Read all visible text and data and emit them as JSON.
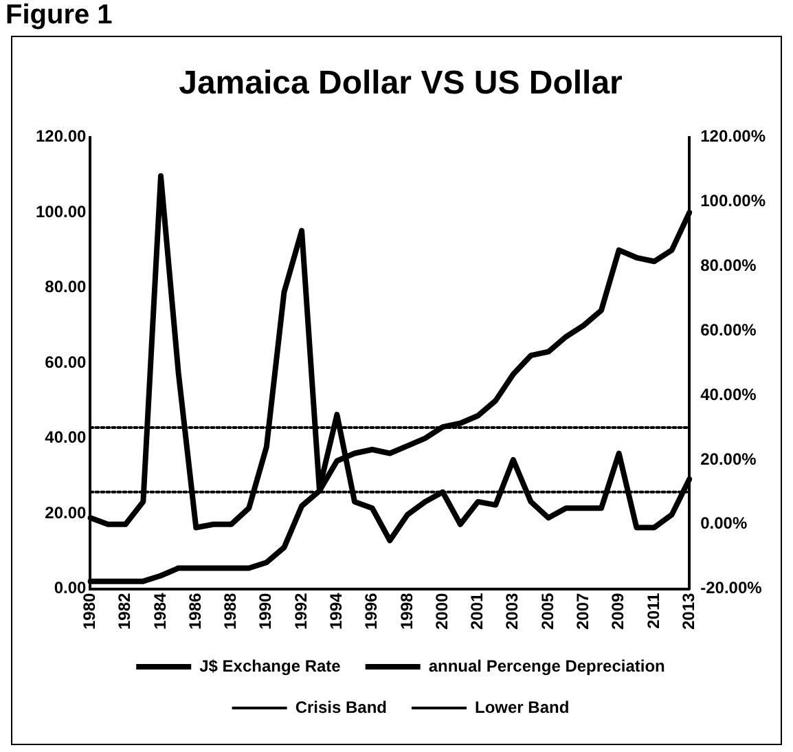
{
  "chart_data": {
    "type": "line",
    "title": "Jamaica Dollar VS US Dollar",
    "annotations": [
      "Figure 1"
    ],
    "categories": [
      "1980",
      null,
      "1982",
      null,
      "1984",
      null,
      "1986",
      null,
      "1988",
      null,
      "1990",
      null,
      "1992",
      null,
      "1994",
      null,
      "1996",
      null,
      "1998",
      null,
      "2000",
      null,
      "2001",
      null,
      "2003",
      null,
      "2005",
      null,
      "2007",
      null,
      "2009",
      null,
      "2011",
      null,
      "2013"
    ],
    "series": [
      {
        "name": "J$ Exchange Rate",
        "color": "#000000",
        "line_style": "solid",
        "values": [
          2,
          2,
          2,
          2,
          3.5,
          5.5,
          5.5,
          5.5,
          5.5,
          5.5,
          7,
          11,
          22,
          26,
          34,
          36,
          37,
          36,
          38,
          40,
          43,
          44,
          46,
          50,
          57,
          62,
          63,
          67,
          70,
          74,
          90,
          88,
          87,
          90,
          100
        ]
      },
      {
        "name": "annual Percenge Depreciation",
        "color": "#000000",
        "axis": "y2",
        "line_style": "solid",
        "values": [
          2,
          0,
          0,
          7,
          108,
          47,
          -1,
          0,
          0,
          5,
          24,
          72,
          91,
          11,
          34,
          7,
          5,
          -5,
          3,
          7,
          10,
          0,
          7,
          6,
          20,
          7,
          2,
          5,
          5,
          5,
          22,
          -1,
          -1,
          3,
          14
        ]
      },
      {
        "name": "Crisis Band",
        "color": "#000000",
        "axis": "y2",
        "line_style": "dotted",
        "values": [
          30,
          30,
          30,
          30,
          30,
          30,
          30,
          30,
          30,
          30,
          30,
          30,
          30,
          30,
          30,
          30,
          30,
          30,
          30,
          30,
          30,
          30,
          30,
          30,
          30,
          30,
          30,
          30,
          30,
          30,
          30,
          30,
          30,
          30,
          30
        ]
      },
      {
        "name": "Lower Band",
        "color": "#000000",
        "axis": "y2",
        "line_style": "dotted",
        "values": [
          10,
          10,
          10,
          10,
          10,
          10,
          10,
          10,
          10,
          10,
          10,
          10,
          10,
          10,
          10,
          10,
          10,
          10,
          10,
          10,
          10,
          10,
          10,
          10,
          10,
          10,
          10,
          10,
          10,
          10,
          10,
          10,
          10,
          10,
          10
        ]
      }
    ],
    "ylim": [
      0,
      120
    ],
    "yticks": [
      {
        "value": 0,
        "label": "0.00"
      },
      {
        "value": 20,
        "label": "20.00"
      },
      {
        "value": 40,
        "label": "40.00"
      },
      {
        "value": 60,
        "label": "60.00"
      },
      {
        "value": 80,
        "label": "80.00"
      },
      {
        "value": 100,
        "label": "100.00"
      },
      {
        "value": 120,
        "label": "120.00"
      }
    ],
    "y2lim": [
      -20,
      120
    ],
    "y2ticks": [
      {
        "value": -20,
        "label": "-20.00%"
      },
      {
        "value": 0,
        "label": "0.00%"
      },
      {
        "value": 20,
        "label": "20.00%"
      },
      {
        "value": 40,
        "label": "40.00%"
      },
      {
        "value": 60,
        "label": "60.00%"
      },
      {
        "value": 80,
        "label": "80.00%"
      },
      {
        "value": 100,
        "label": "100.00%"
      },
      {
        "value": 120,
        "label": "120.00%"
      }
    ],
    "grid": false,
    "legend": "bottom",
    "marker": "none"
  }
}
